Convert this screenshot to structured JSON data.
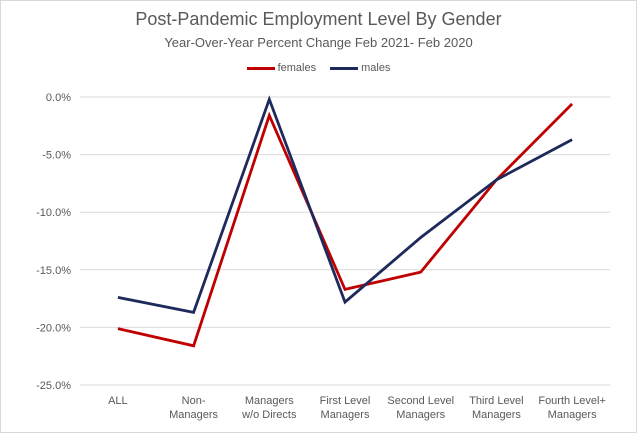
{
  "chart_data": {
    "type": "line",
    "title": "Post-Pandemic Employment Level By Gender",
    "subtitle": "Year-Over-Year Percent Change Feb 2021- Feb 2020",
    "categories": [
      [
        "ALL"
      ],
      [
        "Non-",
        "Managers"
      ],
      [
        "Managers",
        "w/o Directs"
      ],
      [
        "First Level",
        "Managers"
      ],
      [
        "Second Level",
        "Managers"
      ],
      [
        "Third Level",
        "Managers"
      ],
      [
        "Fourth Level+",
        "Managers"
      ]
    ],
    "series": [
      {
        "name": "females",
        "color": "#c00000",
        "values": [
          -20.1,
          -21.6,
          -1.6,
          -16.7,
          -15.2,
          -7.2,
          -0.6
        ]
      },
      {
        "name": "males",
        "color": "#1f2a5c",
        "values": [
          -17.4,
          -18.7,
          -0.2,
          -17.8,
          -12.2,
          -7.2,
          -3.7
        ]
      }
    ],
    "y_ticks": [
      "0.0%",
      "-5.0%",
      "-10.0%",
      "-15.0%",
      "-20.0%",
      "-25.0%"
    ],
    "ylim": [
      -25,
      0
    ],
    "legend": "top-center",
    "grid": true
  }
}
